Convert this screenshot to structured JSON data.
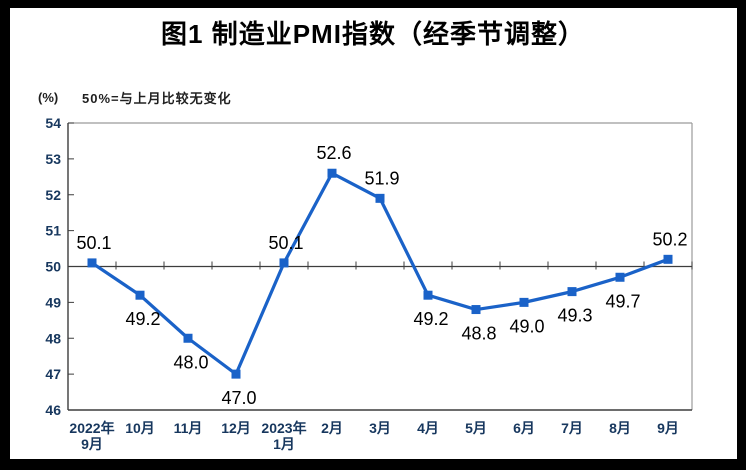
{
  "header": {
    "title": "图1 制造业PMI指数（经季节调整）"
  },
  "chart_data": {
    "type": "line",
    "title": "图1 制造业PMI指数（经季节调整）",
    "unit_label": "(%)",
    "note": "50%=与上月比较无变化",
    "categories": [
      [
        "2022年",
        "9月"
      ],
      [
        "10月"
      ],
      [
        "11月"
      ],
      [
        "12月"
      ],
      [
        "2023年",
        "1月"
      ],
      [
        "2月"
      ],
      [
        "3月"
      ],
      [
        "4月"
      ],
      [
        "5月"
      ],
      [
        "6月"
      ],
      [
        "7月"
      ],
      [
        "8月"
      ],
      [
        "9月"
      ]
    ],
    "values": [
      50.1,
      49.2,
      48.0,
      47.0,
      50.1,
      52.6,
      51.9,
      49.2,
      48.8,
      49.0,
      49.3,
      49.7,
      50.2
    ],
    "point_labels": [
      "50.1",
      "49.2",
      "48.0",
      "47.0",
      "50.1",
      "52.6",
      "51.9",
      "49.2",
      "48.8",
      "49.0",
      "49.3",
      "49.7",
      "50.2"
    ],
    "label_placement": [
      "above",
      "below",
      "below",
      "below",
      "above",
      "above",
      "above",
      "below",
      "below",
      "below",
      "below",
      "below",
      "above"
    ],
    "ylim": [
      46,
      54
    ],
    "ytick_step": 1,
    "baseline_value": 50,
    "grid": false,
    "legend": "none",
    "marker": "square",
    "colors": {
      "line": "#1A62C8",
      "marker": "#1A62C8",
      "axis": "#3d3d3d",
      "frame": "#9b9b9b",
      "tick_label": "#17375E",
      "data_label": "#000000",
      "page_border": "#000000",
      "page_background": "#ffffff"
    }
  }
}
